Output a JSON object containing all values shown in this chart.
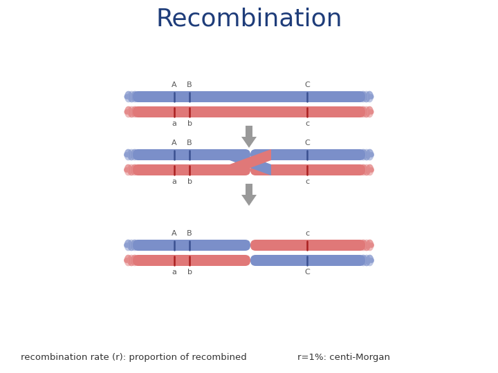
{
  "title": "Recombination",
  "title_color": "#1f3d7a",
  "title_fontsize": 26,
  "background_color": "#ffffff",
  "blue_color": "#7b8fc9",
  "blue_dark": "#5a6fa8",
  "blue_light": "#a0aed8",
  "red_color": "#e07878",
  "red_dark": "#c05050",
  "red_light": "#eda0a0",
  "arrow_color": "#999999",
  "label_color": "#555555",
  "line_blue": "#3a5090",
  "line_red": "#aa2020",
  "bottom_text_left": "recombination rate (r): proportion of recombined",
  "bottom_text_right": "r=1%: centi-Morgan",
  "figsize": [
    7.2,
    5.4
  ],
  "dpi": 100
}
